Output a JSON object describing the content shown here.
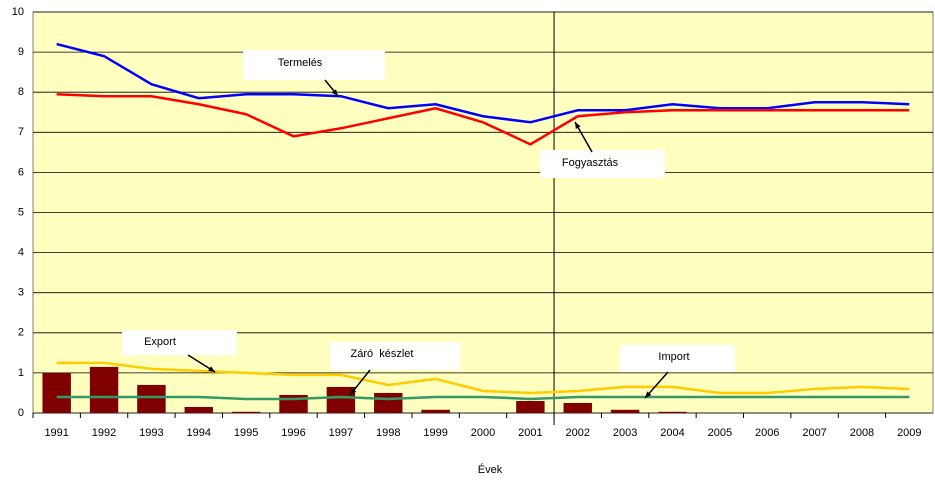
{
  "chart_data": {
    "type": "combo",
    "x_label": "Évek",
    "categories": [
      "1991",
      "1992",
      "1993",
      "1994",
      "1995",
      "1996",
      "1997",
      "1998",
      "1999",
      "2000",
      "2001",
      "2002",
      "2003",
      "2004",
      "2005",
      "2006",
      "2007",
      "2008",
      "2009"
    ],
    "ylim": [
      0,
      10
    ],
    "yticks": [
      0,
      1,
      2,
      3,
      4,
      5,
      6,
      7,
      8,
      9,
      10
    ],
    "grid": true,
    "series": [
      {
        "name": "Termelés",
        "type": "line",
        "color": "#0000ff",
        "values": [
          9.2,
          8.9,
          8.2,
          7.85,
          7.95,
          7.95,
          7.9,
          7.6,
          7.7,
          7.4,
          7.25,
          7.55,
          7.55,
          7.7,
          7.6,
          7.6,
          7.75,
          7.75,
          7.7
        ]
      },
      {
        "name": "Fogyasztás",
        "type": "line",
        "color": "#ff0000",
        "values": [
          7.95,
          7.9,
          7.9,
          7.7,
          7.45,
          6.9,
          7.1,
          7.35,
          7.6,
          7.25,
          6.7,
          7.4,
          7.5,
          7.55,
          7.55,
          7.55,
          7.55,
          7.55,
          7.55
        ]
      },
      {
        "name": "Export",
        "type": "line",
        "color": "#ffcc00",
        "values": [
          1.25,
          1.25,
          1.1,
          1.05,
          1.0,
          0.95,
          0.95,
          0.7,
          0.85,
          0.55,
          0.5,
          0.55,
          0.65,
          0.65,
          0.5,
          0.5,
          0.6,
          0.65,
          0.6
        ]
      },
      {
        "name": "Záró  készlet",
        "type": "bar",
        "color": "#800000",
        "values": [
          1.0,
          1.15,
          0.7,
          0.15,
          0.03,
          0.45,
          0.65,
          0.5,
          0.08,
          0,
          0.3,
          0.25,
          0.08,
          0.03,
          0,
          0,
          0,
          0,
          0
        ]
      },
      {
        "name": "Import",
        "type": "line",
        "color": "#339966",
        "values": [
          0.4,
          0.4,
          0.4,
          0.4,
          0.35,
          0.35,
          0.4,
          0.35,
          0.4,
          0.4,
          0.35,
          0.4,
          0.4,
          0.4,
          0.4,
          0.4,
          0.4,
          0.4,
          0.4
        ]
      }
    ]
  }
}
